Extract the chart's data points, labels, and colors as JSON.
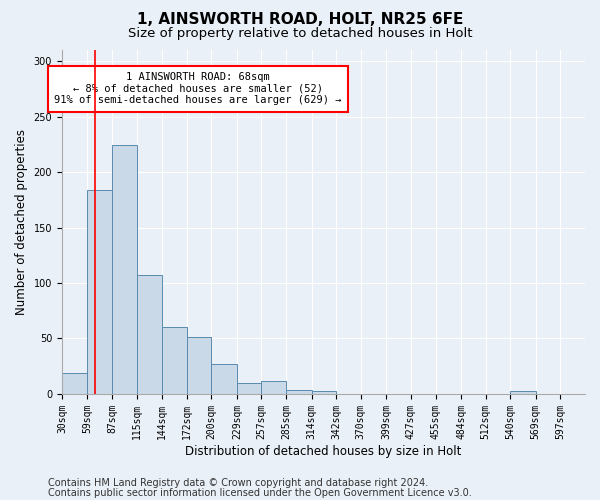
{
  "title1": "1, AINSWORTH ROAD, HOLT, NR25 6FE",
  "title2": "Size of property relative to detached houses in Holt",
  "xlabel": "Distribution of detached houses by size in Holt",
  "ylabel": "Number of detached properties",
  "bin_labels": [
    "30sqm",
    "59sqm",
    "87sqm",
    "115sqm",
    "144sqm",
    "172sqm",
    "200sqm",
    "229sqm",
    "257sqm",
    "285sqm",
    "314sqm",
    "342sqm",
    "370sqm",
    "399sqm",
    "427sqm",
    "455sqm",
    "484sqm",
    "512sqm",
    "540sqm",
    "569sqm",
    "597sqm"
  ],
  "bar_values": [
    19,
    184,
    224,
    107,
    60,
    51,
    27,
    10,
    12,
    4,
    3,
    0,
    0,
    0,
    0,
    0,
    0,
    0,
    3,
    0,
    0
  ],
  "bin_edges": [
    30,
    59,
    87,
    115,
    144,
    172,
    200,
    229,
    257,
    285,
    314,
    342,
    370,
    399,
    427,
    455,
    484,
    512,
    540,
    569,
    597
  ],
  "bar_color": "#c9d9e8",
  "bar_edge_color": "#5a8ab0",
  "red_line_x": 68,
  "ylim": [
    0,
    310
  ],
  "annotation_text": "1 AINSWORTH ROAD: 68sqm\n← 8% of detached houses are smaller (52)\n91% of semi-detached houses are larger (629) →",
  "annotation_box_color": "white",
  "annotation_box_edge_color": "red",
  "footer1": "Contains HM Land Registry data © Crown copyright and database right 2024.",
  "footer2": "Contains public sector information licensed under the Open Government Licence v3.0.",
  "background_color": "#eaf0f7",
  "title1_fontsize": 11,
  "title2_fontsize": 9.5,
  "tick_fontsize": 7,
  "label_fontsize": 8.5,
  "footer_fontsize": 7
}
